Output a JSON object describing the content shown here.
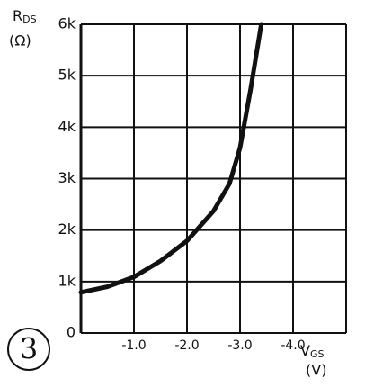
{
  "chart_data": {
    "type": "line",
    "y_label": {
      "main": "R",
      "sub": "DS",
      "unit": "(Ω)"
    },
    "x_label": {
      "main": "V",
      "sub": "GS",
      "unit": "(V)"
    },
    "annotation": "3",
    "x": [
      0,
      -0.5,
      -1.0,
      -1.5,
      -2.0,
      -2.5,
      -2.8,
      -3.0,
      -3.2,
      -3.4
    ],
    "series": [
      {
        "color": "#111111",
        "values": [
          790,
          900,
          1090,
          1400,
          1790,
          2370,
          2900,
          3600,
          4740,
          6000
        ]
      }
    ],
    "xlim": [
      0,
      -5
    ],
    "ylim": [
      0,
      6000
    ],
    "xticks": [
      {
        "value": -1,
        "label": "-1.0"
      },
      {
        "value": -2,
        "label": "-2.0"
      },
      {
        "value": -3,
        "label": "-3.0"
      },
      {
        "value": -4,
        "label": "-4.0"
      }
    ],
    "yticks": [
      0,
      {
        "value": 1000,
        "label": "1k"
      },
      {
        "value": 2000,
        "label": "2k"
      },
      {
        "value": 3000,
        "label": "3k"
      },
      {
        "value": 4000,
        "label": "4k"
      },
      {
        "value": 5000,
        "label": "5k"
      },
      {
        "value": 6000,
        "label": "6k"
      }
    ],
    "grid": true
  }
}
